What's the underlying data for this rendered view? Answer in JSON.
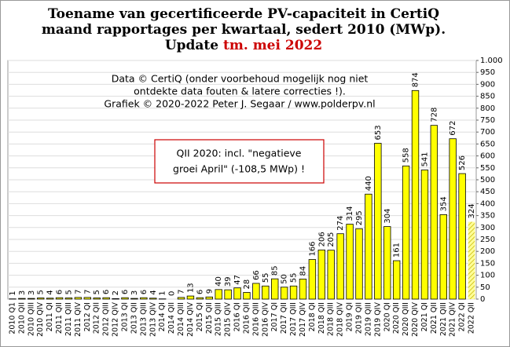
{
  "chart_data": {
    "type": "bar",
    "title_lines": [
      "Toename van gecertificeerde PV-capaciteit in CertiQ",
      "maand rapportages per kwartaal, sedert 2010 (MWp).",
      "Update "
    ],
    "title_highlight": "tm. mei 2022",
    "highlight_color": "#cc0000",
    "annotation_lines": [
      "Data © CertiQ (onder voorbehoud mogelijk  nog niet",
      "ontdekte data fouten & latere correcties !).",
      "Grafiek  © 2020-2022 Peter J. Segaar / www.polderpv.nl"
    ],
    "box_lines": [
      "QII 2020:  incl. \"negatieve",
      "groei April\"  (-108,5 MWp)  !"
    ],
    "categories": [
      "2010 Q1",
      "2010 QII",
      "2010 QIII",
      "2010 QIV",
      "2011 QI",
      "2011 QII",
      "2011 QIII",
      "2011 QIV",
      "2012 QI",
      "2012 QII",
      "2012 QIII",
      "2012 QIV",
      "2013 QI",
      "2013 QII",
      "2013 QIII",
      "2013 QIV",
      "2014 QI",
      "2014 QII",
      "2014 QIII",
      "2014 QIV",
      "2015 QI",
      "2015 QII",
      "2015 QIII",
      "2015 QIV",
      "2016 QI",
      "2016 QII",
      "2016 QIII",
      "2016 QIV",
      "2017 QI",
      "2017 QII",
      "2017 QIII",
      "2017 QIV",
      "2018 QI",
      "2018 QII",
      "2018 QIII",
      "2018 QIV",
      "2019 QI",
      "2019 QII",
      "2019 QIII",
      "2019 QIV",
      "2020 QI",
      "2020 QII",
      "2020 QIII",
      "2020 QIV",
      "2021 QI",
      "2021 QII",
      "2021 QIII",
      "2021 QIV",
      "2022 QI",
      "2022 QII"
    ],
    "values": [
      1,
      3,
      3,
      5,
      4,
      6,
      5,
      7,
      7,
      5,
      6,
      2,
      6,
      3,
      6,
      4,
      1,
      0,
      7,
      13,
      6,
      9,
      40,
      39,
      47,
      28,
      66,
      55,
      85,
      50,
      55,
      84,
      166,
      206,
      205,
      274,
      314,
      295,
      440,
      653,
      304,
      161,
      558,
      874,
      541,
      728,
      354,
      672,
      526,
      324
    ],
    "color": "#ffff00",
    "hatch_last": true,
    "ylim": [
      0,
      1000
    ],
    "yticks": [
      0,
      50,
      100,
      150,
      200,
      250,
      300,
      350,
      400,
      450,
      500,
      550,
      600,
      650,
      700,
      750,
      800,
      850,
      900,
      950,
      {
        "value": 1000,
        "label": "1.000"
      }
    ],
    "grid": true
  }
}
